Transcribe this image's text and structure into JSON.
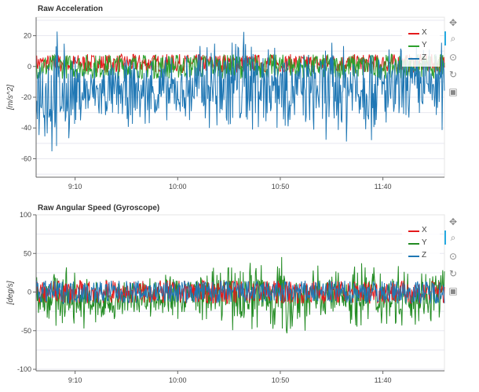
{
  "chart_data": [
    {
      "type": "line",
      "title": "Raw Acceleration",
      "ylabel": "[m/s^2]",
      "xlabel": "",
      "xlim": [
        "08:51",
        "12:10"
      ],
      "ylim": [
        -72,
        32
      ],
      "x_ticks": [
        "9:10",
        "10:00",
        "10:50",
        "11:40"
      ],
      "y_ticks": [
        -60,
        -40,
        -20,
        0,
        20
      ],
      "legend_position": "top-right",
      "series": [
        {
          "name": "X",
          "color": "#e41a1c",
          "baseline": 2,
          "amplitude": 6
        },
        {
          "name": "Y",
          "color": "#2ca02c",
          "baseline": 0,
          "amplitude": 8
        },
        {
          "name": "Z",
          "color": "#1f77b4",
          "baseline": -12,
          "amplitude": 20
        }
      ],
      "z_envelope": {
        "times": [
          "08:51",
          "09:00",
          "09:10",
          "09:20",
          "09:40",
          "09:50",
          "10:00",
          "10:15",
          "10:25",
          "10:35",
          "10:50",
          "11:00",
          "11:20",
          "11:30",
          "11:45",
          "12:00",
          "12:10"
        ],
        "upper": [
          20,
          30,
          10,
          5,
          8,
          12,
          5,
          28,
          30,
          30,
          25,
          10,
          25,
          28,
          15,
          20,
          22
        ],
        "lower": [
          -50,
          -70,
          -45,
          -40,
          -42,
          -45,
          -38,
          -52,
          -55,
          -50,
          -45,
          -42,
          -55,
          -52,
          -48,
          -45,
          -47
        ]
      }
    },
    {
      "type": "line",
      "title": "Raw Angular Speed (Gyroscope)",
      "ylabel": "[deg/s]",
      "xlabel": "",
      "xlim": [
        "08:51",
        "12:10"
      ],
      "ylim": [
        -102,
        100
      ],
      "x_ticks": [
        "9:10",
        "10:00",
        "10:50",
        "11:40"
      ],
      "y_ticks": [
        -100,
        -50,
        0,
        50,
        100
      ],
      "legend_position": "top-right",
      "series": [
        {
          "name": "X",
          "color": "#e41a1c",
          "baseline": 0,
          "amplitude": 15
        },
        {
          "name": "Y",
          "color": "#228b22",
          "baseline": 0,
          "amplitude": 35
        },
        {
          "name": "Z",
          "color": "#1f77b4",
          "baseline": 0,
          "amplitude": 15
        }
      ],
      "y_envelope": {
        "times": [
          "08:51",
          "09:00",
          "09:10",
          "09:20",
          "09:30",
          "09:40",
          "10:00",
          "10:20",
          "10:35",
          "10:50",
          "11:00",
          "11:15",
          "11:30",
          "11:45",
          "12:00",
          "12:10"
        ],
        "upper": [
          35,
          45,
          30,
          25,
          20,
          25,
          30,
          35,
          55,
          60,
          40,
          35,
          50,
          45,
          35,
          40
        ],
        "lower": [
          -35,
          -55,
          -45,
          -60,
          -45,
          -35,
          -40,
          -45,
          -60,
          -70,
          -55,
          -40,
          -55,
          -50,
          -45,
          -40
        ]
      }
    }
  ],
  "toolbar": {
    "pan": "pan-icon",
    "box_zoom": "box-zoom-icon",
    "wheel_zoom": "wheel-zoom-icon",
    "reset": "reset-icon",
    "save": "save-icon"
  }
}
